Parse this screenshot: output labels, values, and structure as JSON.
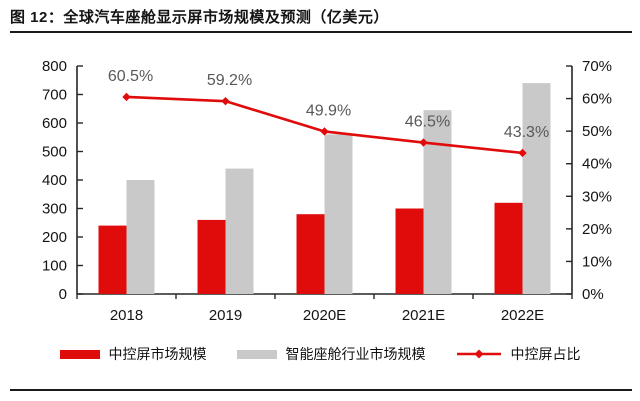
{
  "figure": {
    "title": "图 12：全球汽车座舱显示屏市场规模及预测（亿美元）"
  },
  "chart_data": {
    "type": "bar+line",
    "title": "全球汽车座舱显示屏市场规模及预测（亿美元）",
    "figure_label": "图 12",
    "categories": [
      "2018",
      "2019",
      "2020E",
      "2021E",
      "2022E"
    ],
    "series": [
      {
        "name": "中控屏市场规模",
        "type": "bar",
        "axis": "left",
        "color": "#e00c0c",
        "values": [
          240,
          260,
          280,
          300,
          320
        ]
      },
      {
        "name": "智能座舱行业市场规模",
        "type": "bar",
        "axis": "left",
        "color": "#c9c9c9",
        "values": [
          400,
          440,
          560,
          645,
          740
        ]
      },
      {
        "name": "中控屏占比",
        "type": "line",
        "axis": "right",
        "color": "#e00c0c",
        "values": [
          60.5,
          59.2,
          49.9,
          46.5,
          43.3
        ],
        "point_labels": [
          "60.5%",
          "59.2%",
          "49.9%",
          "46.5%",
          "43.3%"
        ]
      }
    ],
    "left_axis": {
      "min": 0,
      "max": 800,
      "step": 100,
      "tick_labels": [
        "800",
        "700",
        "600",
        "500",
        "400",
        "300",
        "200",
        "100",
        "0"
      ]
    },
    "right_axis": {
      "min": 0,
      "max": 70,
      "step": 10,
      "tick_labels": [
        "70%",
        "60%",
        "50%",
        "40%",
        "30%",
        "20%",
        "10%",
        "0%"
      ]
    },
    "legend_position": "bottom",
    "grid": false
  },
  "colors": {
    "bar_primary": "#e00c0c",
    "bar_secondary": "#c9c9c9",
    "line": "#e00c0c",
    "data_label": "#595959",
    "axis": "#262626",
    "text": "#141414",
    "rule": "#1a1a1a"
  }
}
